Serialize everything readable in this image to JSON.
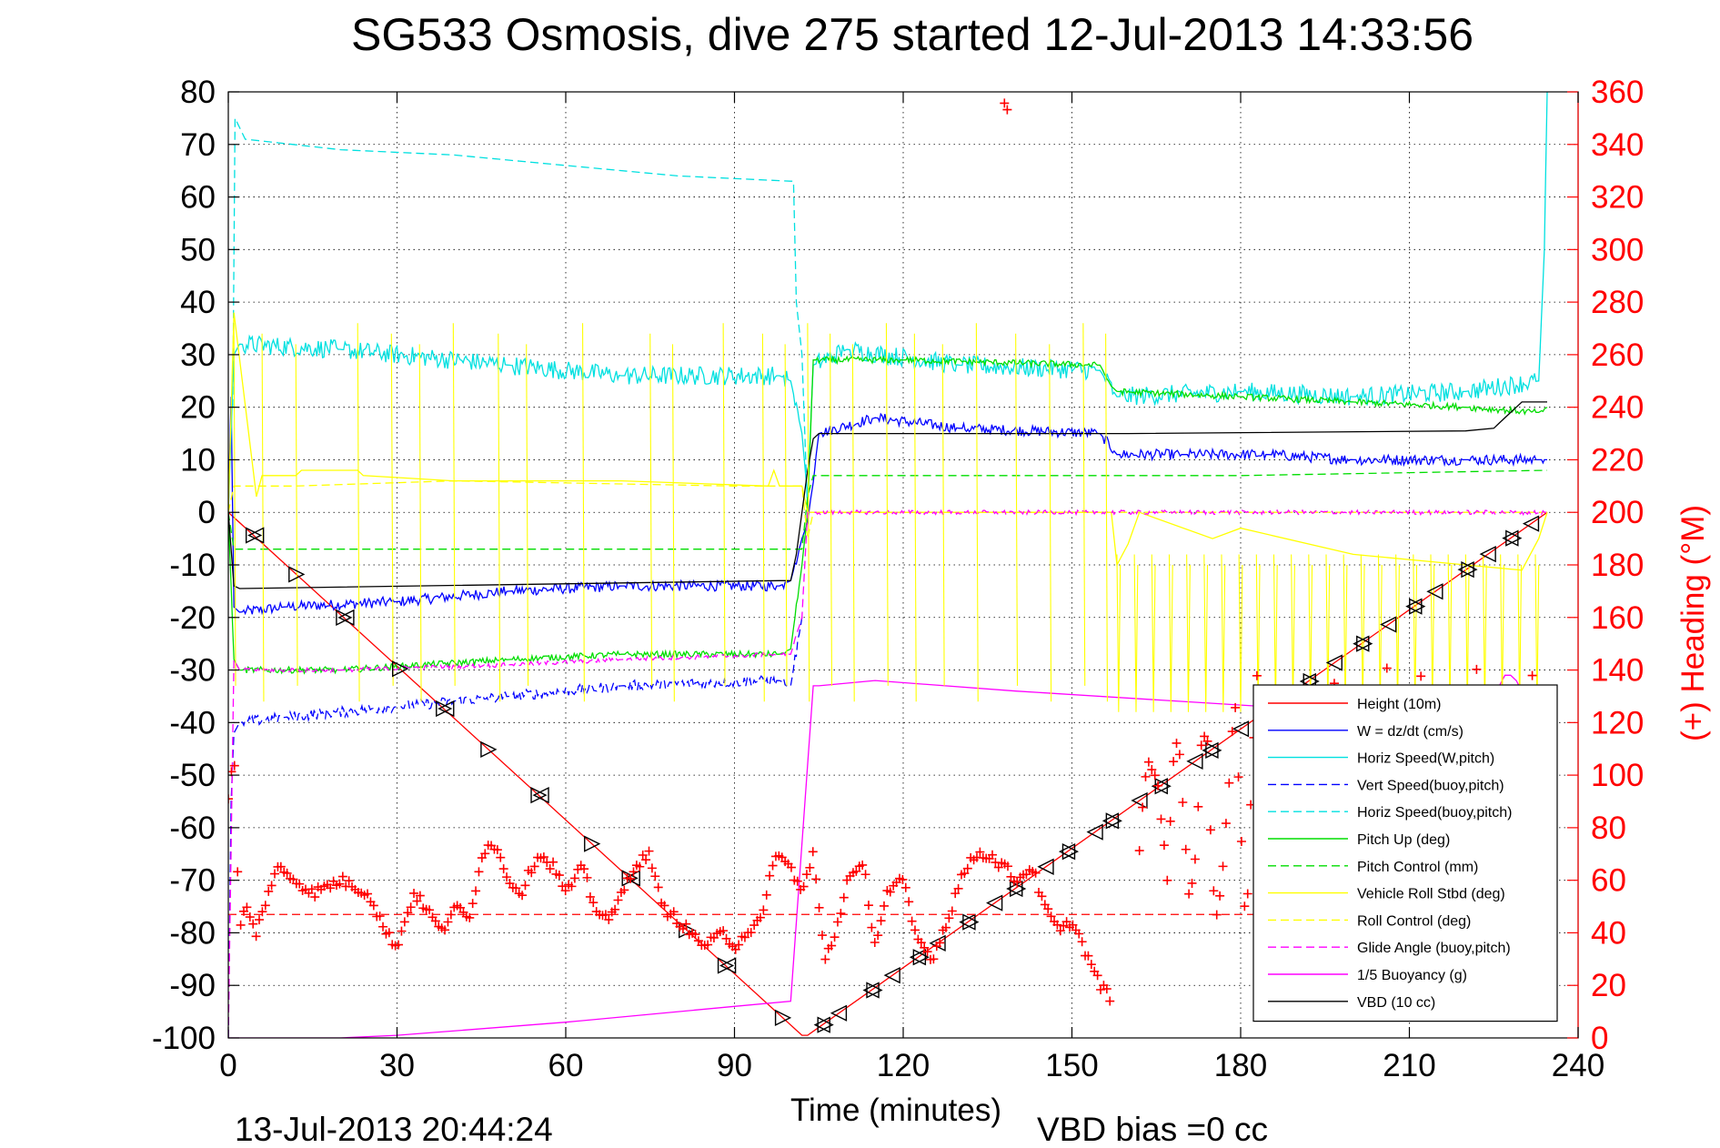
{
  "chart_data": {
    "type": "line",
    "title": "SG533 Osmosis, dive 275 started 12-Jul-2013 14:33:56",
    "xlabel": "Time (minutes)",
    "ylabel": "",
    "y2label": "(+) Heading (°M)",
    "xlim": [
      0,
      240
    ],
    "ylim": [
      -100,
      80
    ],
    "y2lim": [
      0,
      360
    ],
    "xticks": [
      "0",
      "30",
      "60",
      "90",
      "120",
      "150",
      "180",
      "210",
      "240"
    ],
    "yticks": [
      "80",
      "70",
      "60",
      "50",
      "40",
      "30",
      "20",
      "10",
      "0",
      "-10",
      "-20",
      "-30",
      "-40",
      "-50",
      "-60",
      "-70",
      "-80",
      "-90",
      "-100"
    ],
    "y2ticks": [
      "360",
      "340",
      "320",
      "300",
      "280",
      "260",
      "240",
      "220",
      "200",
      "180",
      "160",
      "140",
      "120",
      "100",
      "80",
      "60",
      "40",
      "20",
      "0"
    ],
    "grid": true,
    "legend_position": "bottom-right",
    "series": [
      {
        "name": "Height (10m)",
        "color": "#ff0000",
        "style": "solid",
        "marker": "none",
        "x": [
          0,
          102,
          103,
          234.5
        ],
        "y": [
          0,
          -99.5,
          -99.5,
          0
        ]
      },
      {
        "name": "W = dz/dt (cm/s)",
        "color": "#0000ff",
        "style": "solid",
        "noise": 1.0,
        "x": [
          0,
          0.5,
          1,
          2,
          10,
          30,
          50,
          70,
          98,
          100,
          102,
          103,
          105,
          115,
          130,
          155,
          158,
          170,
          185,
          200,
          220,
          233,
          234.5
        ],
        "y": [
          0,
          22,
          -18,
          -19,
          -18,
          -17,
          -15,
          -14,
          -14,
          -13,
          -5,
          -2,
          15,
          18,
          16,
          15,
          11,
          11,
          11,
          10,
          10,
          10,
          10
        ]
      },
      {
        "name": "Horiz Speed(W,pitch)",
        "color": "#00e0e0",
        "style": "solid",
        "noise": 1.8,
        "x": [
          0,
          1,
          2,
          20,
          50,
          70,
          98,
          100,
          102,
          103,
          104,
          110,
          130,
          155,
          158,
          180,
          200,
          220,
          233,
          234,
          234.5
        ],
        "y": [
          0,
          30,
          32,
          31,
          28,
          26,
          26,
          25,
          15,
          3,
          28,
          31,
          28,
          27,
          22,
          23,
          22,
          23,
          25,
          50,
          80
        ]
      },
      {
        "name": "Vert Speed(buoy,pitch)",
        "color": "#0000ff",
        "style": "dashed",
        "noise": 1.0,
        "x": [
          0,
          0.5,
          1,
          2,
          10,
          30,
          50,
          70,
          98,
          100,
          102
        ],
        "y": [
          -100,
          -55,
          -42,
          -40,
          -39,
          -37,
          -35,
          -33,
          -32,
          -33,
          -20
        ]
      },
      {
        "name": "Horiz Speed(buoy,pitch)",
        "color": "#00e0e0",
        "style": "dashed",
        "x": [
          0.8,
          1.2,
          3,
          20,
          40,
          60,
          80,
          100,
          100.5,
          101,
          102,
          103
        ],
        "y": [
          20,
          75,
          71,
          69,
          68,
          66,
          64,
          63,
          63,
          40,
          30,
          0
        ]
      },
      {
        "name": "Pitch Up (deg)",
        "color": "#00dd00",
        "style": "solid",
        "noise": 0.6,
        "x": [
          0,
          1,
          2,
          20,
          50,
          70,
          98,
          100,
          102,
          103,
          104,
          120,
          155,
          157,
          158,
          180,
          200,
          220,
          233,
          234.5
        ],
        "y": [
          0,
          -28,
          -30,
          -30,
          -28,
          -27,
          -27,
          -26,
          -10,
          0,
          29,
          29,
          28,
          24,
          23,
          22,
          21,
          20,
          19,
          20
        ]
      },
      {
        "name": "Pitch Control (mm)",
        "color": "#00dd00",
        "style": "dashed",
        "x": [
          0,
          1,
          102,
          103,
          104,
          180,
          234.5
        ],
        "y": [
          0,
          -7,
          -7,
          3,
          7,
          7,
          8
        ]
      },
      {
        "name": "Vehicle Roll Stbd (deg)",
        "color": "#ffff00",
        "style": "solid",
        "x": [
          0,
          1,
          5,
          6,
          12,
          13,
          23,
          24,
          40,
          41,
          70,
          96,
          97,
          98,
          102,
          103,
          104,
          155,
          156,
          157,
          158,
          160,
          162,
          175,
          180,
          200,
          220,
          230,
          233,
          234.5
        ],
        "y": [
          0,
          38,
          3,
          7,
          7,
          8,
          8,
          7,
          6,
          6,
          6,
          5,
          8,
          5,
          5,
          0,
          0,
          0,
          0,
          0,
          -10,
          -6,
          0,
          -5,
          -3,
          -8,
          -10,
          -11,
          -5,
          0
        ]
      },
      {
        "name": "Roll Control (deg)",
        "color": "#ffff00",
        "style": "dashed",
        "x": [
          0,
          1,
          12,
          40,
          90,
          102,
          103,
          104,
          155,
          157,
          234.5
        ],
        "y": [
          0,
          5,
          5,
          6,
          5,
          5,
          -5,
          0,
          0,
          0,
          0
        ]
      },
      {
        "name": "Glide Angle (buoy,pitch)",
        "color": "#ff00ff",
        "style": "dashed",
        "noise": 0.4,
        "x": [
          0,
          1,
          2,
          20,
          50,
          70,
          98,
          100,
          102,
          103,
          104,
          234.5
        ],
        "y": [
          -100,
          -28,
          -30,
          -30,
          -29,
          -28,
          -27,
          -27,
          -20,
          0,
          0,
          0
        ]
      },
      {
        "name": "1/5 Buoyancy (g)",
        "color": "#ff00ff",
        "style": "solid",
        "x": [
          0,
          20,
          30,
          60,
          90,
          100,
          104,
          105,
          115,
          140,
          185,
          210,
          225,
          226,
          227,
          228,
          229,
          230,
          231,
          232,
          234.5
        ],
        "y": [
          -100,
          -100,
          -99.5,
          -97,
          -94,
          -93,
          -33,
          -33,
          -32,
          -34,
          -37,
          -38,
          -38,
          -33,
          -31,
          -31,
          -32,
          -34,
          -36,
          -37,
          -37
        ]
      },
      {
        "name": "VBD (10 cc)",
        "color": "#000000",
        "style": "solid",
        "x": [
          0,
          1,
          2,
          98,
          100,
          101,
          102,
          103,
          104,
          105,
          110,
          160,
          220,
          225,
          226,
          228,
          229,
          230,
          234.5
        ],
        "y": [
          0,
          -14,
          -14.5,
          -13,
          -13,
          -8,
          0,
          8,
          14,
          15,
          15,
          15,
          15.5,
          16,
          17,
          19,
          20,
          21,
          21
        ]
      }
    ],
    "heading": {
      "name": "Heading (+)",
      "color": "#ff0000",
      "axis": "right",
      "marker": "+",
      "mean": 47,
      "segments": [
        {
          "x": [
            0,
            1,
            2,
            3,
            5,
            7,
            9,
            12,
            15,
            20,
            25,
            28,
            30,
            33,
            35,
            38,
            40,
            43,
            45,
            47,
            50,
            52,
            55,
            58,
            60,
            63,
            65,
            68,
            70,
            72,
            75,
            77,
            80,
            82,
            85,
            88,
            90,
            92,
            95,
            97,
            100,
            102,
            104,
            106,
            108,
            110,
            113,
            115,
            117,
            120,
            122,
            125,
            128,
            130,
            133,
            135,
            138,
            140,
            143,
            145,
            148,
            150,
            152,
            155,
            157
          ],
          "y": [
            90,
            110,
            40,
            50,
            40,
            55,
            65,
            60,
            55,
            60,
            55,
            40,
            35,
            55,
            50,
            40,
            50,
            45,
            70,
            75,
            60,
            55,
            70,
            65,
            55,
            65,
            50,
            45,
            55,
            65,
            70,
            50,
            45,
            40,
            35,
            40,
            35,
            40,
            45,
            70,
            65,
            55,
            70,
            30,
            40,
            60,
            65,
            35,
            55,
            60,
            40,
            30,
            45,
            60,
            70,
            70,
            65,
            60,
            65,
            50,
            40,
            45,
            35,
            20,
            15
          ]
        },
        {
          "x": [
            162,
            163,
            164,
            165,
            166,
            167,
            168,
            169,
            170,
            171,
            172,
            173,
            174,
            175,
            176,
            177,
            178,
            179,
            180,
            181,
            182,
            183,
            184,
            185,
            186,
            187,
            188,
            189,
            190,
            191,
            192,
            193,
            194,
            195,
            196,
            197,
            198,
            199,
            200,
            201,
            202,
            203,
            204,
            205,
            206,
            207,
            208,
            209,
            210,
            211,
            212,
            213,
            214,
            215,
            216,
            217,
            218,
            219,
            220,
            221,
            222,
            223,
            224,
            225,
            226,
            227,
            228,
            229,
            230,
            231,
            232,
            233
          ],
          "y": [
            70,
            100,
            105,
            100,
            80,
            60,
            105,
            115,
            80,
            50,
            70,
            110,
            120,
            60,
            45,
            70,
            100,
            130,
            80,
            40,
            100,
            140,
            60,
            30,
            90,
            130,
            100,
            50,
            70,
            120,
            110,
            60,
            45,
            80,
            130,
            140,
            100,
            60,
            40,
            90,
            130,
            90,
            60,
            100,
            140,
            120,
            80,
            55,
            90,
            120,
            140,
            100,
            70,
            60,
            100,
            130,
            90,
            60,
            80,
            110,
            140,
            110,
            80,
            60,
            100,
            130,
            90,
            70,
            100,
            120,
            140,
            90
          ]
        },
        {
          "x": [
            137.5,
            138,
            138.5
          ],
          "y": [
            362,
            357,
            352
          ]
        }
      ]
    },
    "markers_down": {
      "color": "#000000",
      "count": 12,
      "x_range": [
        0,
        102
      ]
    },
    "markers_up": {
      "color": "#000000",
      "count": 30,
      "x_range": [
        103,
        234.5
      ]
    }
  },
  "footer": {
    "timestamp": "13-Jul-2013 20:44:24",
    "vbd_bias": "VBD bias =0 cc"
  },
  "colors": {
    "axis": "#000000",
    "right_axis": "#ff0000",
    "grid": "#000000"
  }
}
